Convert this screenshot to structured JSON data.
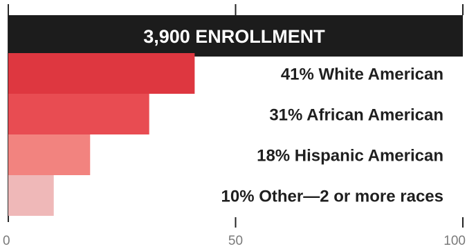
{
  "chart_data": {
    "type": "bar",
    "orientation": "horizontal",
    "total": {
      "value": 100,
      "label": "3,900 ENROLLMENT",
      "color": "#1c1c1c"
    },
    "categories": [
      "41% White American",
      "31% African American",
      "18% Hispanic American",
      "10% Other—2 or more races"
    ],
    "values": [
      41,
      31,
      18,
      10
    ],
    "bar_colors": [
      "#de3740",
      "#e84c52",
      "#f2837f",
      "#efb8b8"
    ],
    "xlim": [
      0,
      100
    ],
    "xticks": [
      0,
      50,
      100
    ],
    "xticklabels": [
      "0",
      "50",
      "100"
    ],
    "title": "",
    "xlabel": "",
    "ylabel": "",
    "grid": false,
    "legend": "none"
  }
}
